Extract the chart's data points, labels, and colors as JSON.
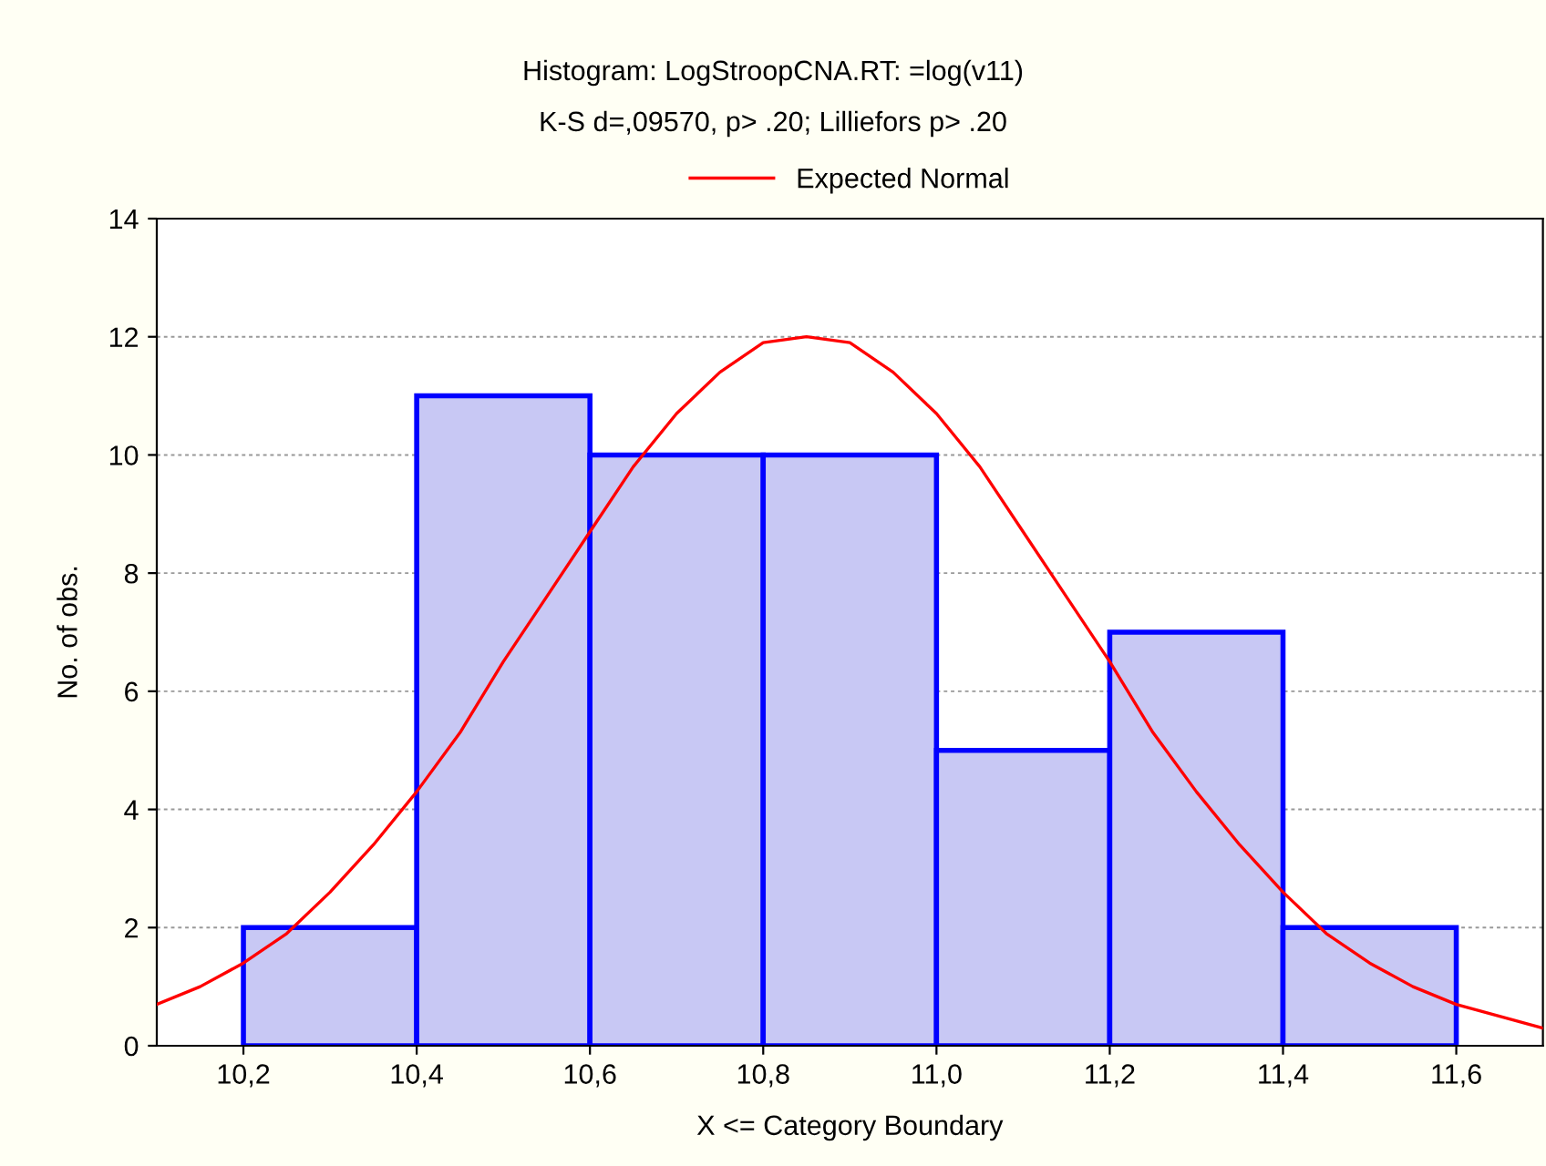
{
  "chart_data": {
    "type": "histogram",
    "title": "Histogram: LogStroopCNA.RT: =log(v11)",
    "subtitle": "K-S d=,09570, p> .20; Lilliefors p> .20",
    "xlabel": "X <= Category Boundary",
    "ylabel": "No. of obs.",
    "series": [
      {
        "type": "histogram",
        "bins": [
          10.2,
          10.4,
          10.6,
          10.8,
          11.0,
          11.2,
          11.4,
          11.6
        ],
        "values": [
          2,
          11,
          10,
          10,
          5,
          7,
          2
        ],
        "color": "#c8c8f4"
      },
      {
        "type": "line",
        "name": "Expected Normal",
        "color": "#ff0000",
        "x": [
          10.1,
          10.15,
          10.2,
          10.25,
          10.3,
          10.35,
          10.4,
          10.45,
          10.5,
          10.55,
          10.6,
          10.65,
          10.7,
          10.75,
          10.8,
          10.85,
          10.9,
          10.95,
          11.0,
          11.05,
          11.1,
          11.15,
          11.2,
          11.25,
          11.3,
          11.35,
          11.4,
          11.45,
          11.5,
          11.55,
          11.6,
          11.65,
          11.7
        ],
        "values": [
          0.7,
          1.0,
          1.4,
          1.9,
          2.6,
          3.4,
          4.3,
          5.3,
          6.5,
          7.6,
          8.7,
          9.8,
          10.7,
          11.4,
          11.9,
          12.0,
          11.9,
          11.4,
          10.7,
          9.8,
          8.7,
          7.6,
          6.5,
          5.3,
          4.3,
          3.4,
          2.6,
          1.9,
          1.4,
          1.0,
          0.7,
          0.5,
          0.3
        ]
      }
    ],
    "xlim": [
      10.1,
      11.7
    ],
    "ylim": [
      0,
      14
    ],
    "xticks": [
      {
        "value": 10.2,
        "label": "10,2"
      },
      {
        "value": 10.4,
        "label": "10,4"
      },
      {
        "value": 10.6,
        "label": "10,6"
      },
      {
        "value": 10.8,
        "label": "10,8"
      },
      {
        "value": 11.0,
        "label": "11,0"
      },
      {
        "value": 11.2,
        "label": "11,2"
      },
      {
        "value": 11.4,
        "label": "11,4"
      },
      {
        "value": 11.6,
        "label": "11,6"
      }
    ],
    "yticks": [
      0,
      2,
      4,
      6,
      8,
      10,
      12,
      14
    ],
    "grid": "y",
    "legend": "top"
  }
}
